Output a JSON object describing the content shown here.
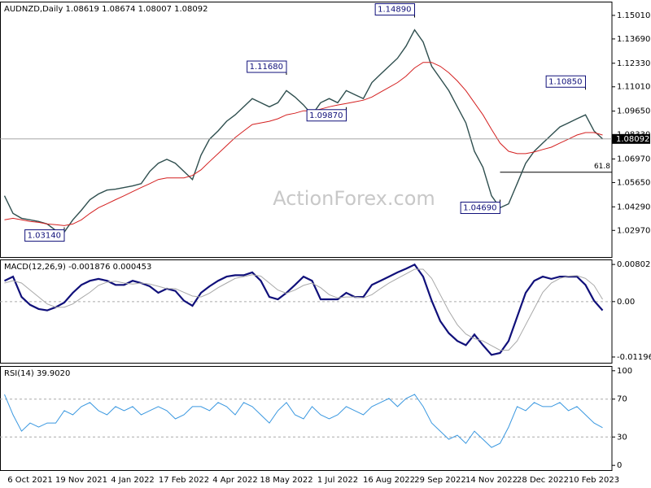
{
  "chart_data": [
    {
      "type": "line",
      "title": "AUDNZD,Daily  1.08619 1.08674 1.08007 1.08092",
      "watermark": "ActionForex.com",
      "ylim": [
        1.0148,
        1.1578
      ],
      "yticks": [
        {
          "value": 1.1501,
          "label": "1.15010"
        },
        {
          "value": 1.1369,
          "label": "1.13690"
        },
        {
          "value": 1.1233,
          "label": "1.12330"
        },
        {
          "value": 1.1101,
          "label": "1.11010"
        },
        {
          "value": 1.0965,
          "label": "1.09650"
        },
        {
          "value": 1.0833,
          "label": "1.08330"
        },
        {
          "value": 1.0697,
          "label": "1.06970"
        },
        {
          "value": 1.0565,
          "label": "1.05650"
        },
        {
          "value": 1.0429,
          "label": "1.04290"
        },
        {
          "value": 1.0297,
          "label": "1.02970"
        }
      ],
      "last": 1.08092,
      "levels": [
        {
          "value": 1.0623,
          "label": "61.8",
          "x": 58
        }
      ],
      "annotations": [
        {
          "value": 1.0314,
          "label": "1.03140",
          "x": 7
        },
        {
          "value": 1.1168,
          "label": "1.11680",
          "x": 33
        },
        {
          "value": 1.0987,
          "label": "1.09870",
          "x": 40
        },
        {
          "value": 1.1489,
          "label": "1.14890",
          "x": 48
        },
        {
          "value": 1.0469,
          "label": "1.04690",
          "x": 58
        },
        {
          "value": 1.1085,
          "label": "1.10850",
          "x": 68
        }
      ],
      "series": [
        {
          "color": "#2f4f4f",
          "values": [
            1.0491,
            1.0392,
            1.0365,
            1.0356,
            1.0347,
            1.0333,
            1.0297,
            1.0288,
            1.0356,
            1.041,
            1.0469,
            1.0501,
            1.0523,
            1.0528,
            1.0537,
            1.0546,
            1.0559,
            1.0627,
            1.0673,
            1.0695,
            1.0673,
            1.0627,
            1.0582,
            1.0718,
            1.0808,
            1.0854,
            1.0908,
            1.0944,
            1.0989,
            1.1035,
            1.1012,
            1.0989,
            1.1012,
            1.108,
            1.1044,
            1.0999,
            1.0944,
            1.1012,
            1.1035,
            1.1012,
            1.108,
            1.1057,
            1.1035,
            1.1125,
            1.1171,
            1.1216,
            1.1261,
            1.1329,
            1.142,
            1.1352,
            1.1216,
            1.1148,
            1.108,
            1.0989,
            1.0899,
            1.074,
            1.065,
            1.0491,
            1.0424,
            1.0446,
            1.0559,
            1.0673,
            1.074,
            1.0786,
            1.0831,
            1.0876,
            1.0899,
            1.0922,
            1.0944,
            1.0854,
            1.08092
          ]
        },
        {
          "color": "#d42020",
          "values": [
            1.0356,
            1.0365,
            1.0356,
            1.0347,
            1.0342,
            1.0333,
            1.0329,
            1.0324,
            1.0333,
            1.0356,
            1.0392,
            1.0424,
            1.0446,
            1.0469,
            1.0491,
            1.0514,
            1.0537,
            1.0559,
            1.0582,
            1.0591,
            1.0591,
            1.0591,
            1.0605,
            1.0636,
            1.0682,
            1.0727,
            1.0772,
            1.0817,
            1.0854,
            1.089,
            1.0899,
            1.0908,
            1.0922,
            1.0944,
            1.0953,
            1.0967,
            1.0967,
            1.0976,
            1.0989,
            1.0999,
            1.1008,
            1.1017,
            1.1026,
            1.1044,
            1.1071,
            1.1098,
            1.1125,
            1.1161,
            1.1207,
            1.1238,
            1.1238,
            1.1216,
            1.118,
            1.1134,
            1.108,
            1.1012,
            1.0944,
            1.0863,
            1.0786,
            1.074,
            1.0727,
            1.0727,
            1.0736,
            1.075,
            1.0763,
            1.0786,
            1.0808,
            1.0831,
            1.0845,
            1.0845,
            1.0831
          ]
        }
      ]
    },
    {
      "type": "line",
      "title": "MACD(12,26,9) -0.001876 0.000453",
      "ylim": [
        -0.0132,
        0.0091
      ],
      "yticks": [
        0.008021,
        {
          "value": 0,
          "label": "0.00"
        },
        -0.011962
      ],
      "reference_lines": [
        0
      ],
      "series": [
        {
          "color": "#10107a",
          "values": [
            0.0045,
            0.0054,
            0.001,
            -0.0007,
            -0.0016,
            -0.0019,
            -0.0012,
            -0.0002,
            0.0019,
            0.0036,
            0.0045,
            0.0049,
            0.0045,
            0.0036,
            0.0036,
            0.0045,
            0.004,
            0.0033,
            0.0019,
            0.0028,
            0.0023,
            0.0002,
            -0.0009,
            0.0019,
            0.0033,
            0.0045,
            0.0054,
            0.0057,
            0.0057,
            0.0063,
            0.0045,
            0.001,
            0.0005,
            0.0019,
            0.0036,
            0.0054,
            0.0045,
            0.0005,
            0.0005,
            0.0005,
            0.0019,
            0.001,
            0.001,
            0.0036,
            0.0045,
            0.0054,
            0.0063,
            0.0071,
            0.008,
            0.0054,
            0.0002,
            -0.0042,
            -0.0068,
            -0.0085,
            -0.0094,
            -0.0071,
            -0.0094,
            -0.0115,
            -0.0111,
            -0.0085,
            -0.0033,
            0.0019,
            0.0045,
            0.0054,
            0.0049,
            0.0054,
            0.0054,
            0.0054,
            0.0036,
            0.0002,
            -0.0019
          ]
        },
        {
          "color": "#a8a8a8",
          "values": [
            0.004,
            0.0045,
            0.004,
            0.0025,
            0.001,
            -0.0005,
            -0.0012,
            -0.0012,
            -0.0005,
            0.0008,
            0.002,
            0.0035,
            0.0042,
            0.0044,
            0.004,
            0.0038,
            0.004,
            0.0038,
            0.0033,
            0.0028,
            0.0028,
            0.002,
            0.0012,
            0.001,
            0.0018,
            0.003,
            0.004,
            0.005,
            0.0054,
            0.0058,
            0.0055,
            0.004,
            0.0025,
            0.0018,
            0.0025,
            0.0035,
            0.004,
            0.003,
            0.0015,
            0.0008,
            0.001,
            0.001,
            0.0008,
            0.0015,
            0.0028,
            0.004,
            0.005,
            0.006,
            0.007,
            0.007,
            0.005,
            0.0015,
            -0.002,
            -0.005,
            -0.007,
            -0.008,
            -0.0085,
            -0.0095,
            -0.0105,
            -0.0105,
            -0.0085,
            -0.005,
            -0.0015,
            0.002,
            0.004,
            0.005,
            0.0055,
            0.0056,
            0.005,
            0.0035,
            0.0005
          ]
        }
      ]
    },
    {
      "type": "line",
      "title": "RSI(14) 39.9020",
      "ylim": [
        -5,
        105
      ],
      "yticks": [
        100,
        70,
        30,
        0
      ],
      "reference_lines": [
        70,
        30
      ],
      "categories": [
        null,
        null,
        null,
        "6 Oct 2021",
        null,
        null,
        null,
        null,
        null,
        "19 Nov 2021",
        null,
        null,
        null,
        null,
        null,
        "4 Jan 2022",
        null,
        null,
        null,
        null,
        null,
        "17 Feb 2022",
        null,
        null,
        null,
        null,
        null,
        "4 Apr 2022",
        null,
        null,
        null,
        null,
        null,
        "18 May 2022",
        null,
        null,
        null,
        null,
        null,
        "1 Jul 2022",
        null,
        null,
        null,
        null,
        null,
        "16 Aug 2022",
        null,
        null,
        null,
        null,
        null,
        "29 Sep 2022",
        null,
        null,
        null,
        null,
        null,
        "14 Nov 2022",
        null,
        null,
        null,
        null,
        null,
        "28 Dec 2022",
        null,
        null,
        null,
        null,
        null,
        "10 Feb 2023",
        null
      ],
      "series": [
        {
          "color": "#3a98e0",
          "values": [
            75.0,
            53.4,
            36.2,
            44.8,
            40.5,
            44.8,
            44.8,
            57.8,
            53.4,
            62.1,
            66.4,
            57.8,
            53.4,
            62.1,
            57.8,
            62.1,
            53.4,
            57.8,
            62.1,
            57.8,
            49.1,
            53.4,
            62.1,
            62.1,
            57.8,
            66.4,
            62.1,
            53.4,
            66.4,
            62.1,
            53.4,
            44.8,
            57.8,
            66.4,
            53.4,
            49.1,
            62.1,
            53.4,
            49.1,
            53.4,
            62.1,
            57.8,
            53.4,
            62.1,
            66.4,
            70.7,
            62.1,
            70.7,
            75.0,
            62.1,
            44.8,
            36.2,
            27.6,
            31.9,
            23.3,
            36.2,
            27.6,
            19.0,
            23.3,
            40.5,
            62.1,
            57.8,
            66.4,
            62.1,
            62.1,
            66.4,
            57.8,
            62.1,
            53.4,
            44.8,
            39.9
          ]
        }
      ]
    }
  ]
}
